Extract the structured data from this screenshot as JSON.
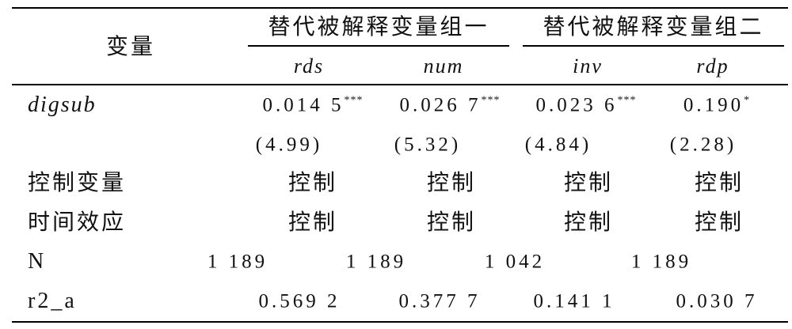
{
  "table": {
    "header": {
      "stub": "变量",
      "groups": [
        "替代被解释变量组一",
        "替代被解释变量组二"
      ],
      "columns": [
        "rds",
        "num",
        "inv",
        "rdp"
      ]
    },
    "rows": [
      {
        "label": "digsub",
        "cells": [
          {
            "value": "0.014 5",
            "stars": "***"
          },
          {
            "value": "0.026 7",
            "stars": "***"
          },
          {
            "value": "0.023 6",
            "stars": "***"
          },
          {
            "value": "0.190",
            "stars": "*"
          }
        ]
      },
      {
        "cells": [
          {
            "value": "(4.99)"
          },
          {
            "value": "(5.32)"
          },
          {
            "value": "(4.84)"
          },
          {
            "value": "(2.28)"
          }
        ]
      },
      {
        "label": "控制变量",
        "cells": [
          {
            "value": "控制"
          },
          {
            "value": "控制"
          },
          {
            "value": "控制"
          },
          {
            "value": "控制"
          }
        ]
      },
      {
        "label": "时间效应",
        "cells": [
          {
            "value": "控制"
          },
          {
            "value": "控制"
          },
          {
            "value": "控制"
          },
          {
            "value": "控制"
          }
        ]
      },
      {
        "label": "N",
        "cells": [
          {
            "value": "1 189"
          },
          {
            "value": "1 189"
          },
          {
            "value": "1 042"
          },
          {
            "value": "1 189"
          }
        ]
      },
      {
        "label": "r2_a",
        "cells": [
          {
            "value": "0.569 2"
          },
          {
            "value": "0.377 7"
          },
          {
            "value": "0.141 1"
          },
          {
            "value": "0.030 7"
          }
        ]
      }
    ]
  }
}
